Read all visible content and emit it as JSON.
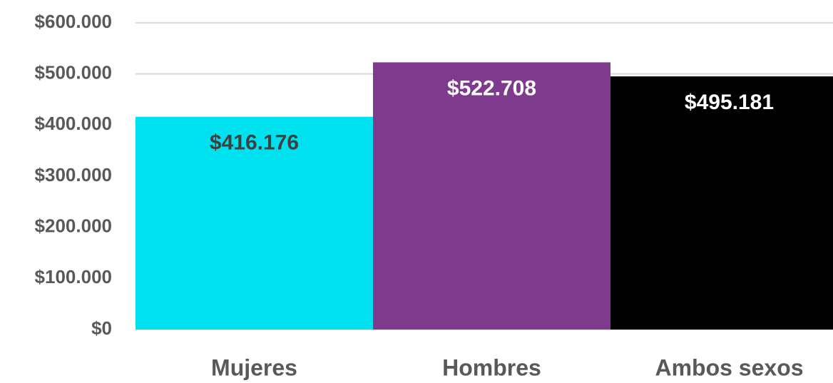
{
  "chart_data": {
    "type": "bar",
    "categories": [
      "Mujeres",
      "Hombres",
      "Ambos sexos"
    ],
    "values": [
      416176,
      522708,
      495181
    ],
    "value_labels": [
      "$416.176",
      "$522.708",
      "$495.181"
    ],
    "colors": [
      "#00e1ef",
      "#7e3a8c",
      "#000000"
    ],
    "value_label_colors": [
      "#404040",
      "#ffffff",
      "#ffffff"
    ],
    "ylim": [
      0,
      600000
    ],
    "yticks": [
      {
        "value": 0,
        "label": "$0"
      },
      {
        "value": 100000,
        "label": "$100.000"
      },
      {
        "value": 200000,
        "label": "$200.000"
      },
      {
        "value": 300000,
        "label": "$300.000"
      },
      {
        "value": 400000,
        "label": "$400.000"
      },
      {
        "value": 500000,
        "label": "$500.000"
      },
      {
        "value": 600000,
        "label": "$600.000"
      }
    ],
    "grid": true
  }
}
